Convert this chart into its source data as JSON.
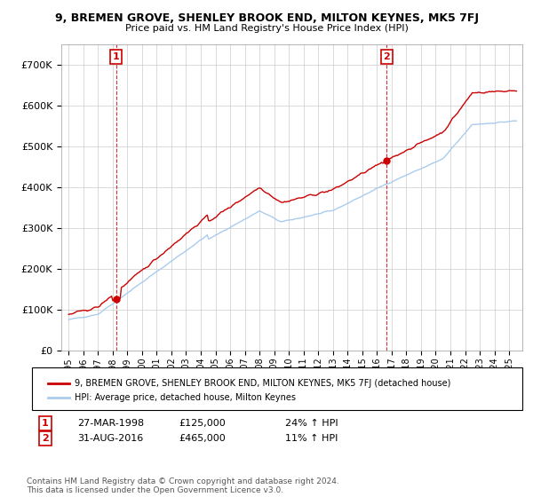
{
  "title": "9, BREMEN GROVE, SHENLEY BROOK END, MILTON KEYNES, MK5 7FJ",
  "subtitle": "Price paid vs. HM Land Registry's House Price Index (HPI)",
  "ylim": [
    0,
    750000
  ],
  "yticks": [
    0,
    100000,
    200000,
    300000,
    400000,
    500000,
    600000,
    700000
  ],
  "hpi_color": "#aaccee",
  "price_color": "#cc0000",
  "dashed_color": "#cc0000",
  "sale1_x": 1998.23,
  "sale1_y": 125000,
  "sale1_date": "27-MAR-1998",
  "sale1_price": 125000,
  "sale1_hpi_pct": "24%",
  "sale2_x": 2016.67,
  "sale2_y": 465000,
  "sale2_date": "31-AUG-2016",
  "sale2_price": 465000,
  "sale2_hpi_pct": "11%",
  "legend_label_price": "9, BREMEN GROVE, SHENLEY BROOK END, MILTON KEYNES, MK5 7FJ (detached house)",
  "legend_label_hpi": "HPI: Average price, detached house, Milton Keynes",
  "footnote": "Contains HM Land Registry data © Crown copyright and database right 2024.\nThis data is licensed under the Open Government Licence v3.0.",
  "background_color": "#ffffff",
  "grid_color": "#cccccc",
  "xlim_left": 1994.5,
  "xlim_right": 2025.9
}
